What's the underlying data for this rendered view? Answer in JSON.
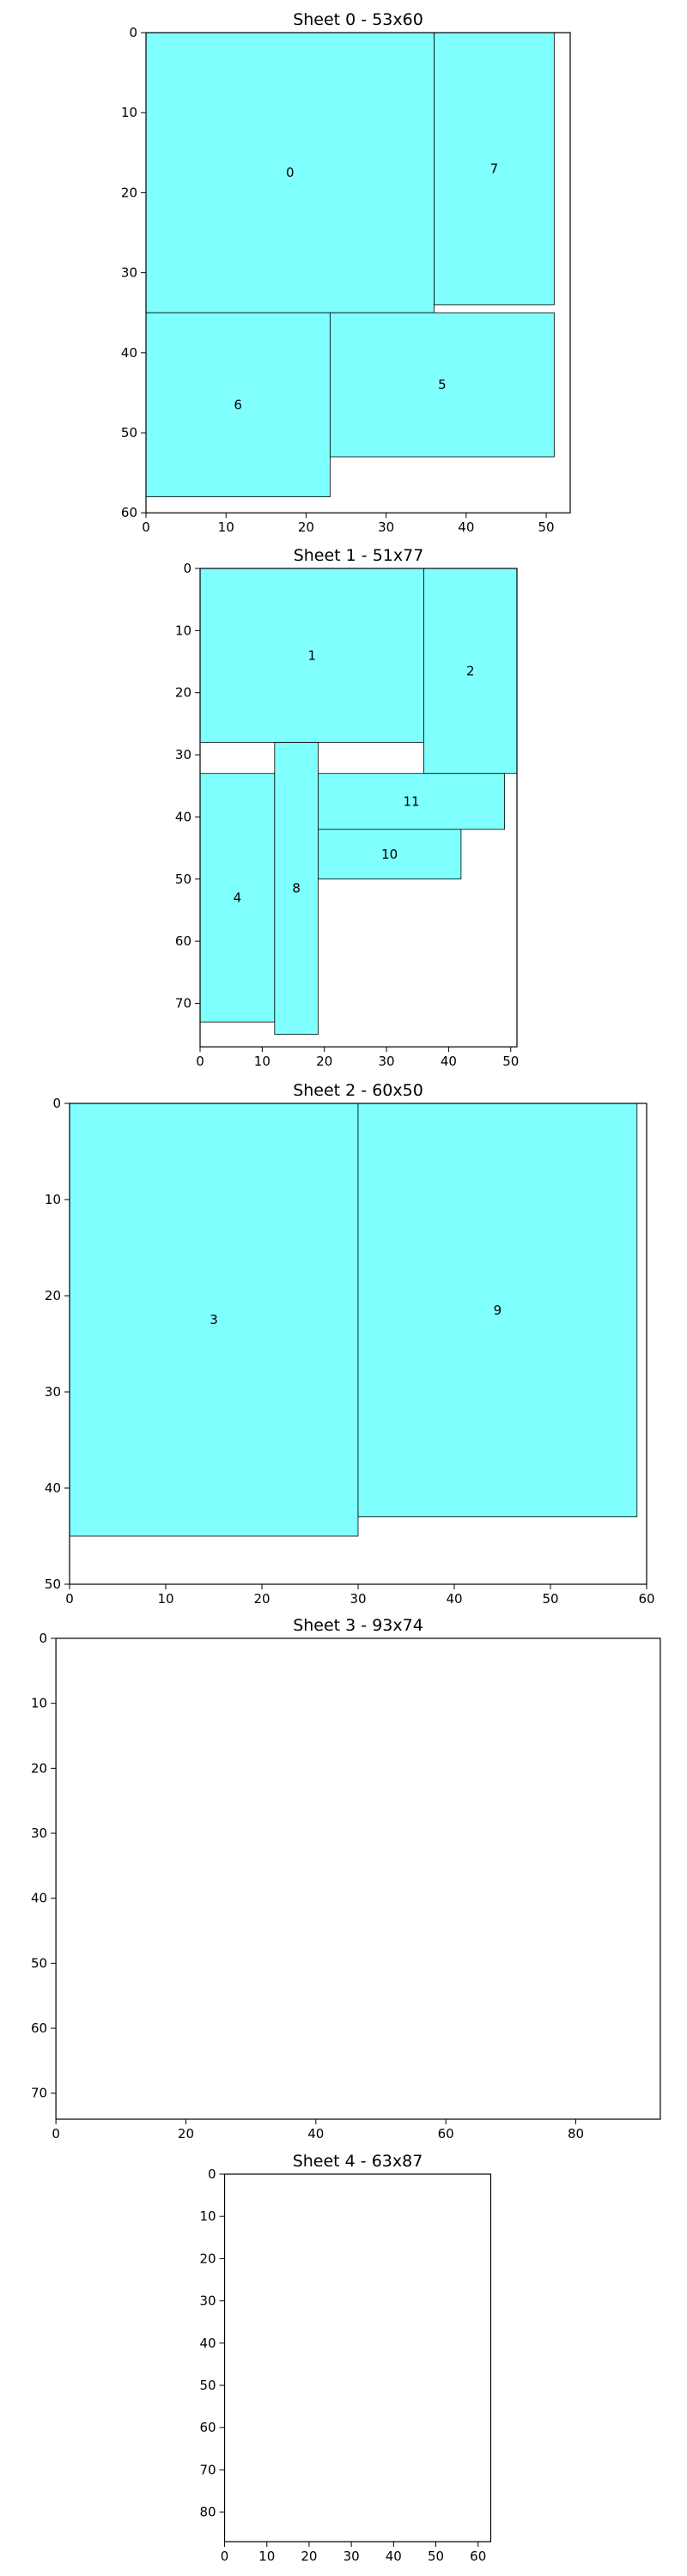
{
  "chart_data": [
    {
      "type": "packing",
      "title": "Sheet 0 - 53x60",
      "sheet_width": 53,
      "sheet_height": 60,
      "xlim": [
        0,
        53
      ],
      "ylim": [
        60,
        0
      ],
      "y_inverted": true,
      "xticks": [
        0,
        10,
        20,
        30,
        40,
        50
      ],
      "yticks": [
        0,
        10,
        20,
        30,
        40,
        50,
        60
      ],
      "fill_color": "#80ffff",
      "pieces": [
        {
          "id": "0",
          "x": 0,
          "y": 0,
          "w": 36,
          "h": 35
        },
        {
          "id": "7",
          "x": 36,
          "y": 0,
          "w": 15,
          "h": 34
        },
        {
          "id": "6",
          "x": 0,
          "y": 35,
          "w": 23,
          "h": 23
        },
        {
          "id": "5",
          "x": 23,
          "y": 35,
          "w": 28,
          "h": 18
        }
      ]
    },
    {
      "type": "packing",
      "title": "Sheet 1 - 51x77",
      "sheet_width": 51,
      "sheet_height": 77,
      "xlim": [
        0,
        51
      ],
      "ylim": [
        77,
        0
      ],
      "y_inverted": true,
      "xticks": [
        0,
        10,
        20,
        30,
        40,
        50
      ],
      "yticks": [
        0,
        10,
        20,
        30,
        40,
        50,
        60,
        70
      ],
      "fill_color": "#80ffff",
      "pieces": [
        {
          "id": "1",
          "x": 0,
          "y": 0,
          "w": 36,
          "h": 28
        },
        {
          "id": "2",
          "x": 36,
          "y": 0,
          "w": 15,
          "h": 33
        },
        {
          "id": "4",
          "x": 0,
          "y": 33,
          "w": 12,
          "h": 40
        },
        {
          "id": "8",
          "x": 12,
          "y": 28,
          "w": 7,
          "h": 47
        },
        {
          "id": "11",
          "x": 19,
          "y": 33,
          "w": 30,
          "h": 9
        },
        {
          "id": "10",
          "x": 19,
          "y": 42,
          "w": 23,
          "h": 8
        }
      ]
    },
    {
      "type": "packing",
      "title": "Sheet 2 - 60x50",
      "sheet_width": 60,
      "sheet_height": 50,
      "xlim": [
        0,
        60
      ],
      "ylim": [
        50,
        0
      ],
      "y_inverted": true,
      "xticks": [
        0,
        10,
        20,
        30,
        40,
        50,
        60
      ],
      "yticks": [
        0,
        10,
        20,
        30,
        40,
        50
      ],
      "fill_color": "#80ffff",
      "pieces": [
        {
          "id": "3",
          "x": 0,
          "y": 0,
          "w": 30,
          "h": 45
        },
        {
          "id": "9",
          "x": 30,
          "y": 0,
          "w": 29,
          "h": 43
        }
      ]
    },
    {
      "type": "packing",
      "title": "Sheet 3 - 93x74",
      "sheet_width": 93,
      "sheet_height": 74,
      "xlim": [
        0,
        93
      ],
      "ylim": [
        74,
        0
      ],
      "y_inverted": true,
      "xticks": [
        0,
        20,
        40,
        60,
        80
      ],
      "yticks": [
        0,
        10,
        20,
        30,
        40,
        50,
        60,
        70
      ],
      "fill_color": "#80ffff",
      "pieces": []
    },
    {
      "type": "packing",
      "title": "Sheet 4 - 63x87",
      "sheet_width": 63,
      "sheet_height": 87,
      "xlim": [
        0,
        63
      ],
      "ylim": [
        87,
        0
      ],
      "y_inverted": true,
      "xticks": [
        0,
        10,
        20,
        30,
        40,
        50,
        60
      ],
      "yticks": [
        0,
        10,
        20,
        30,
        40,
        50,
        60,
        70,
        80
      ],
      "fill_color": "#80ffff",
      "pieces": []
    }
  ]
}
